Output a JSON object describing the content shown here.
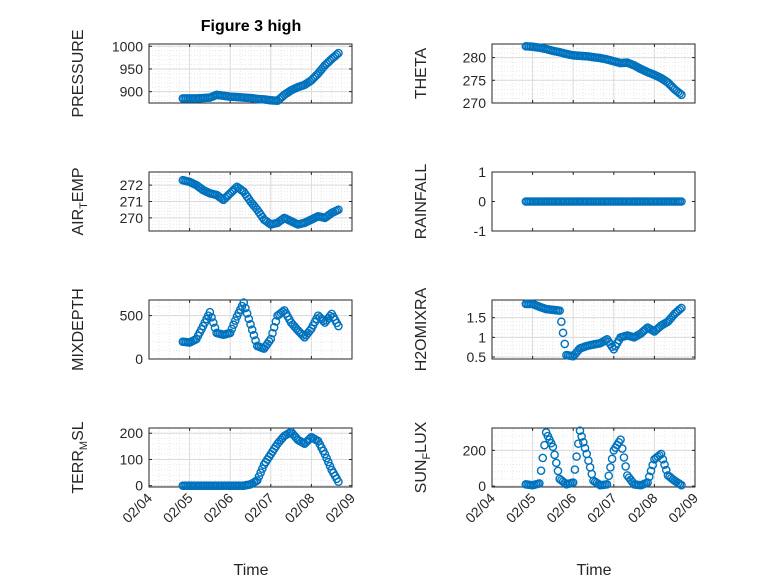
{
  "figure": {
    "title": "Figure 3 high"
  },
  "colors": {
    "marker": "#0072BD",
    "axis": "#262626",
    "grid": "#dadada",
    "minorGrid": "#e8e8e8"
  },
  "chart_data": [
    {
      "type": "scatter",
      "ylabel": "PRESSURE",
      "ylim": [
        875,
        1005
      ],
      "yticks": [
        900,
        950,
        1000
      ],
      "xlim": [
        "02/04",
        "02/09"
      ],
      "xticks": [
        "02/04",
        "02/05",
        "02/06",
        "02/07",
        "02/08",
        "02/09"
      ],
      "grid": true,
      "x_dates": [
        "02/04 20:00",
        "02/05 00:00",
        "02/05 04:00",
        "02/05 08:00",
        "02/05 12:00",
        "02/05 16:00",
        "02/05 20:00",
        "02/06 00:00",
        "02/06 04:00",
        "02/06 08:00",
        "02/06 12:00",
        "02/06 16:00",
        "02/06 20:00",
        "02/07 00:00",
        "02/07 04:00",
        "02/07 08:00",
        "02/07 12:00",
        "02/07 16:00",
        "02/07 20:00",
        "02/08 00:00",
        "02/08 04:00",
        "02/08 08:00",
        "02/08 12:00",
        "02/08 16:00"
      ],
      "y": [
        885,
        885,
        885,
        886,
        887,
        893,
        891,
        889,
        888,
        887,
        886,
        884,
        883,
        881,
        880,
        893,
        903,
        910,
        915,
        925,
        940,
        958,
        972,
        985
      ]
    },
    {
      "type": "scatter",
      "ylabel": "THETA",
      "ylim": [
        270,
        283
      ],
      "yticks": [
        270,
        275,
        280
      ],
      "xlim": [
        "02/04",
        "02/09"
      ],
      "xticks": [
        "02/04",
        "02/05",
        "02/06",
        "02/07",
        "02/08",
        "02/09"
      ],
      "grid": true,
      "x_dates": [
        "02/04 20:00",
        "02/05 00:00",
        "02/05 04:00",
        "02/05 08:00",
        "02/05 12:00",
        "02/05 16:00",
        "02/05 20:00",
        "02/06 00:00",
        "02/06 04:00",
        "02/06 08:00",
        "02/06 12:00",
        "02/06 16:00",
        "02/06 20:00",
        "02/07 00:00",
        "02/07 04:00",
        "02/07 08:00",
        "02/07 12:00",
        "02/07 16:00",
        "02/07 20:00",
        "02/08 00:00",
        "02/08 04:00",
        "02/08 08:00",
        "02/08 12:00",
        "02/08 16:00"
      ],
      "y": [
        282.5,
        282.4,
        282.2,
        281.9,
        281.5,
        281.2,
        280.8,
        280.5,
        280.4,
        280.3,
        280.1,
        279.9,
        279.6,
        279.2,
        278.8,
        278.9,
        278.3,
        277.5,
        276.8,
        276.2,
        275.5,
        274.5,
        273.0,
        271.8
      ]
    },
    {
      "type": "scatter",
      "ylabel": "AIR",
      "ylabel_sub": "T",
      "ylabel_rest": "EMP",
      "ylim": [
        269.2,
        272.8
      ],
      "yticks": [
        270,
        271,
        272
      ],
      "xlim": [
        "02/04",
        "02/09"
      ],
      "xticks": [
        "02/04",
        "02/05",
        "02/06",
        "02/07",
        "02/08",
        "02/09"
      ],
      "grid": true,
      "x_dates": [
        "02/04 20:00",
        "02/05 00:00",
        "02/05 04:00",
        "02/05 08:00",
        "02/05 12:00",
        "02/05 16:00",
        "02/05 20:00",
        "02/06 00:00",
        "02/06 04:00",
        "02/06 08:00",
        "02/06 12:00",
        "02/06 16:00",
        "02/06 20:00",
        "02/07 00:00",
        "02/07 04:00",
        "02/07 08:00",
        "02/07 12:00",
        "02/07 16:00",
        "02/07 20:00",
        "02/08 00:00",
        "02/08 04:00",
        "02/08 08:00",
        "02/08 12:00",
        "02/08 16:00"
      ],
      "y": [
        272.3,
        272.2,
        272.0,
        271.7,
        271.5,
        271.4,
        271.1,
        271.5,
        271.9,
        271.6,
        271.0,
        270.5,
        269.9,
        269.6,
        269.7,
        270.0,
        269.8,
        269.6,
        269.7,
        269.9,
        270.1,
        270.0,
        270.3,
        270.5
      ]
    },
    {
      "type": "scatter",
      "ylabel": "RAINFALL",
      "ylim": [
        -1,
        1
      ],
      "yticks": [
        -1,
        0,
        1
      ],
      "xlim": [
        "02/04",
        "02/09"
      ],
      "xticks": [
        "02/04",
        "02/05",
        "02/06",
        "02/07",
        "02/08",
        "02/09"
      ],
      "grid": false,
      "x_dates": [
        "02/04 20:00",
        "02/05 00:00",
        "02/05 04:00",
        "02/05 08:00",
        "02/05 12:00",
        "02/05 16:00",
        "02/05 20:00",
        "02/06 00:00",
        "02/06 04:00",
        "02/06 08:00",
        "02/06 12:00",
        "02/06 16:00",
        "02/06 20:00",
        "02/07 00:00",
        "02/07 04:00",
        "02/07 08:00",
        "02/07 12:00",
        "02/07 16:00",
        "02/07 20:00",
        "02/08 00:00",
        "02/08 04:00",
        "02/08 08:00",
        "02/08 12:00",
        "02/08 16:00"
      ],
      "y": [
        0,
        0,
        0,
        0,
        0,
        0,
        0,
        0,
        0,
        0,
        0,
        0,
        0,
        0,
        0,
        0,
        0,
        0,
        0,
        0,
        0,
        0,
        0,
        0
      ]
    },
    {
      "type": "scatter",
      "ylabel": "MIXDEPTH",
      "ylim": [
        0,
        680
      ],
      "yticks": [
        0,
        500
      ],
      "xlim": [
        "02/04",
        "02/09"
      ],
      "xticks": [
        "02/04",
        "02/05",
        "02/06",
        "02/07",
        "02/08",
        "02/09"
      ],
      "grid": true,
      "x_dates": [
        "02/04 20:00",
        "02/05 00:00",
        "02/05 04:00",
        "02/05 08:00",
        "02/05 12:00",
        "02/05 16:00",
        "02/05 20:00",
        "02/06 00:00",
        "02/06 04:00",
        "02/06 08:00",
        "02/06 12:00",
        "02/06 16:00",
        "02/06 20:00",
        "02/07 00:00",
        "02/07 04:00",
        "02/07 08:00",
        "02/07 12:00",
        "02/07 16:00",
        "02/07 20:00",
        "02/08 00:00",
        "02/08 04:00",
        "02/08 08:00",
        "02/08 12:00",
        "02/08 16:00"
      ],
      "y": [
        200,
        190,
        230,
        380,
        540,
        300,
        280,
        300,
        490,
        650,
        400,
        150,
        120,
        230,
        500,
        560,
        420,
        330,
        250,
        350,
        500,
        420,
        520,
        380
      ]
    },
    {
      "type": "scatter",
      "ylabel": "H2OMIXRA",
      "ylim": [
        0.45,
        1.95
      ],
      "yticks": [
        0.5,
        1,
        1.5
      ],
      "xlim": [
        "02/04",
        "02/09"
      ],
      "xticks": [
        "02/04",
        "02/05",
        "02/06",
        "02/07",
        "02/08",
        "02/09"
      ],
      "grid": true,
      "x_dates": [
        "02/04 20:00",
        "02/05 00:00",
        "02/05 04:00",
        "02/05 08:00",
        "02/05 12:00",
        "02/05 16:00",
        "02/05 20:00",
        "02/06 00:00",
        "02/06 04:00",
        "02/06 08:00",
        "02/06 12:00",
        "02/06 16:00",
        "02/06 20:00",
        "02/07 00:00",
        "02/07 04:00",
        "02/07 08:00",
        "02/07 12:00",
        "02/07 16:00",
        "02/07 20:00",
        "02/08 00:00",
        "02/08 04:00",
        "02/08 08:00",
        "02/08 12:00",
        "02/08 16:00"
      ],
      "y": [
        1.85,
        1.85,
        1.78,
        1.72,
        1.7,
        1.68,
        0.55,
        0.52,
        0.72,
        0.78,
        0.82,
        0.85,
        0.95,
        0.7,
        1.0,
        1.05,
        1.0,
        1.1,
        1.25,
        1.15,
        1.3,
        1.4,
        1.6,
        1.75
      ]
    },
    {
      "type": "scatter",
      "ylabel": "TERR",
      "ylabel_sub": "M",
      "ylabel_rest": "SL",
      "ylim": [
        -5,
        220
      ],
      "yticks": [
        0,
        100,
        200
      ],
      "xlim": [
        "02/04",
        "02/09"
      ],
      "xticks": [
        "02/04",
        "02/05",
        "02/06",
        "02/07",
        "02/08",
        "02/09"
      ],
      "grid": true,
      "x_dates": [
        "02/04 20:00",
        "02/05 00:00",
        "02/05 04:00",
        "02/05 08:00",
        "02/05 12:00",
        "02/05 16:00",
        "02/05 20:00",
        "02/06 00:00",
        "02/06 04:00",
        "02/06 08:00",
        "02/06 12:00",
        "02/06 16:00",
        "02/06 20:00",
        "02/07 00:00",
        "02/07 04:00",
        "02/07 08:00",
        "02/07 12:00",
        "02/07 16:00",
        "02/07 20:00",
        "02/08 00:00",
        "02/08 04:00",
        "02/08 08:00",
        "02/08 12:00",
        "02/08 16:00"
      ],
      "y": [
        0,
        0,
        0,
        0,
        0,
        0,
        0,
        0,
        0,
        0,
        5,
        20,
        80,
        120,
        160,
        190,
        205,
        175,
        160,
        185,
        170,
        120,
        60,
        15
      ]
    },
    {
      "type": "scatter",
      "ylabel": "SUN",
      "ylabel_sub": "F",
      "ylabel_rest": "LUX",
      "ylim": [
        -5,
        325
      ],
      "yticks": [
        0,
        200
      ],
      "xlim": [
        "02/04",
        "02/09"
      ],
      "xticks": [
        "02/04",
        "02/05",
        "02/06",
        "02/07",
        "02/08",
        "02/09"
      ],
      "grid": true,
      "x_dates": [
        "02/04 20:00",
        "02/05 00:00",
        "02/05 04:00",
        "02/05 08:00",
        "02/05 12:00",
        "02/05 16:00",
        "02/05 20:00",
        "02/06 00:00",
        "02/06 04:00",
        "02/06 08:00",
        "02/06 12:00",
        "02/06 16:00",
        "02/06 20:00",
        "02/07 00:00",
        "02/07 04:00",
        "02/07 08:00",
        "02/07 12:00",
        "02/07 16:00",
        "02/07 20:00",
        "02/08 00:00",
        "02/08 04:00",
        "02/08 08:00",
        "02/08 12:00",
        "02/08 16:00"
      ],
      "y": [
        10,
        5,
        15,
        300,
        220,
        40,
        10,
        20,
        310,
        180,
        30,
        5,
        10,
        200,
        260,
        60,
        10,
        5,
        20,
        150,
        180,
        60,
        30,
        5
      ]
    }
  ],
  "xlabels": [
    "Time",
    "Time"
  ]
}
